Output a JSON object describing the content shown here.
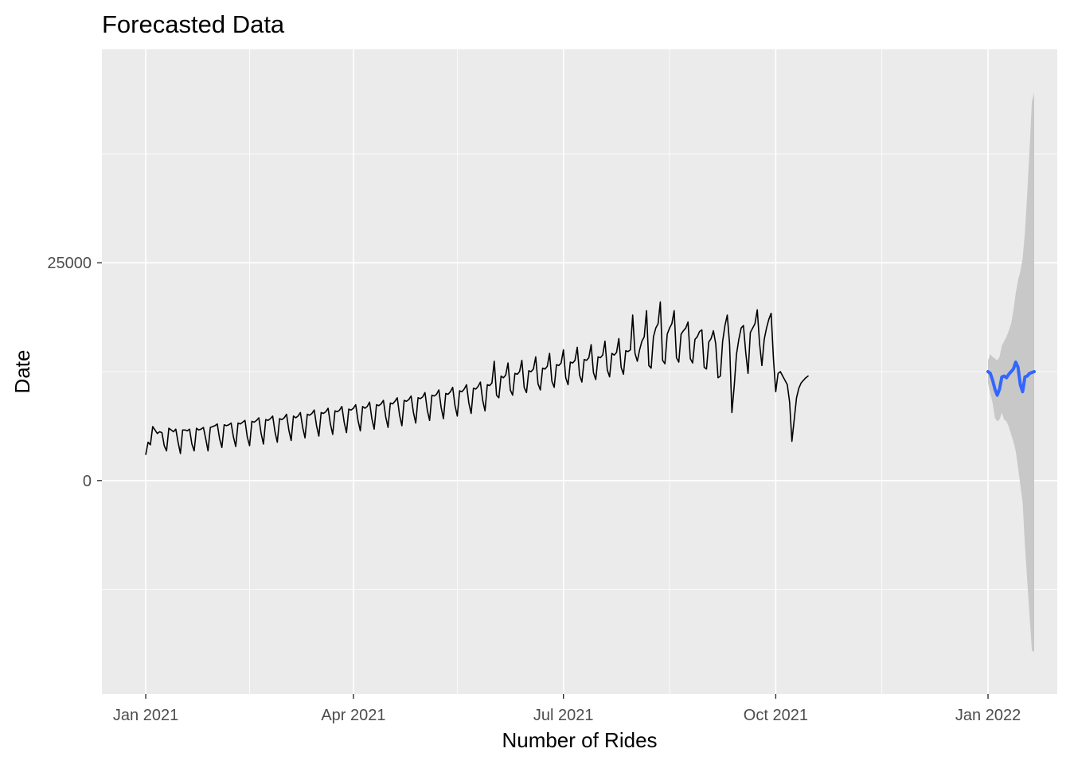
{
  "chart_data": {
    "type": "line",
    "title": "Forecasted Data",
    "xlabel": "Number of Rides",
    "ylabel": "Date",
    "x_range": [
      "2020-12-13",
      "2022-01-31"
    ],
    "y_range": [
      -24500,
      49500
    ],
    "x_ticks": [
      {
        "date": "2021-01-01",
        "label": "Jan 2021"
      },
      {
        "date": "2021-04-01",
        "label": "Apr 2021"
      },
      {
        "date": "2021-07-01",
        "label": "Jul 2021"
      },
      {
        "date": "2021-10-01",
        "label": "Oct 2021"
      },
      {
        "date": "2022-01-01",
        "label": "Jan 2022"
      }
    ],
    "x_minor_ticks": [
      "2021-02-15",
      "2021-05-16",
      "2021-08-16",
      "2021-11-16"
    ],
    "y_ticks": [
      {
        "value": 0,
        "label": "0"
      },
      {
        "value": 25000,
        "label": "25000"
      }
    ],
    "y_minor_ticks": [
      -12500,
      12500,
      37500
    ],
    "grid": true,
    "legend": "none",
    "colors": {
      "panel": "#ebebeb",
      "grid": "#ffffff",
      "observed": "#000000",
      "forecast": "#3366ff",
      "interval": "#c8c8c8"
    },
    "series": [
      {
        "name": "observed",
        "start_date": "2021-01-01",
        "frequency": "daily",
        "values": [
          3000,
          4400,
          4100,
          6200,
          5800,
          5400,
          5600,
          5500,
          4000,
          3400,
          6000,
          5800,
          5600,
          5900,
          4400,
          3100,
          5800,
          5800,
          5700,
          5900,
          4200,
          3400,
          6000,
          5800,
          5900,
          6100,
          4800,
          3400,
          6100,
          6200,
          6300,
          6500,
          4800,
          3800,
          6400,
          6300,
          6400,
          6600,
          5000,
          3900,
          6600,
          6500,
          6700,
          6900,
          5000,
          4000,
          6800,
          6700,
          6900,
          7200,
          5400,
          4200,
          7000,
          6900,
          7100,
          7400,
          5600,
          4400,
          7100,
          7000,
          7200,
          7600,
          5800,
          4600,
          7400,
          7200,
          7400,
          7800,
          6100,
          4900,
          7600,
          7500,
          7700,
          8100,
          6300,
          5100,
          7800,
          7700,
          7900,
          8300,
          6500,
          5300,
          8000,
          7900,
          8100,
          8500,
          6700,
          5500,
          8200,
          8100,
          8300,
          8700,
          6900,
          5700,
          8500,
          8300,
          8500,
          9000,
          7100,
          5900,
          8700,
          8600,
          8800,
          9200,
          7300,
          6100,
          8900,
          8800,
          9100,
          9500,
          7500,
          6300,
          9200,
          9100,
          9300,
          9700,
          7800,
          6600,
          9500,
          9400,
          9600,
          10100,
          8100,
          6900,
          9800,
          9700,
          9900,
          10400,
          8400,
          7100,
          10000,
          9900,
          10200,
          10700,
          8600,
          7400,
          10300,
          10200,
          10500,
          11000,
          8900,
          7700,
          10600,
          10500,
          10800,
          11300,
          9200,
          8000,
          11000,
          10900,
          11200,
          13700,
          9800,
          9500,
          12000,
          11800,
          12100,
          13500,
          10400,
          9800,
          12300,
          12200,
          12500,
          13800,
          10700,
          10100,
          12600,
          12500,
          12800,
          14200,
          11100,
          10400,
          12900,
          12800,
          13100,
          14600,
          11400,
          10700,
          13300,
          13200,
          13500,
          15000,
          11800,
          11000,
          13600,
          13500,
          13800,
          15300,
          12100,
          11300,
          13900,
          13800,
          14100,
          15600,
          12400,
          11600,
          14200,
          14100,
          14400,
          16000,
          12700,
          11900,
          14600,
          14400,
          14700,
          16300,
          13000,
          12200,
          14900,
          14800,
          15000,
          19000,
          14600,
          13700,
          15000,
          16000,
          16500,
          19500,
          13200,
          12900,
          16500,
          17500,
          18000,
          20500,
          13800,
          13400,
          16800,
          17500,
          18000,
          19500,
          14100,
          13600,
          16800,
          17200,
          17500,
          18200,
          14000,
          13500,
          16200,
          16500,
          17100,
          17300,
          13000,
          12800,
          15900,
          16300,
          17200,
          15700,
          11800,
          12000,
          16000,
          17800,
          19000,
          15700,
          7800,
          10800,
          14500,
          16200,
          17500,
          17800,
          14700,
          12300,
          17000,
          17500,
          18000,
          19600,
          15700,
          13200,
          16200,
          17500,
          18500,
          19200,
          14000,
          10200,
          12300,
          12500,
          12000,
          11500,
          11000,
          9000,
          4500,
          7000,
          9500,
          10600,
          11200,
          11500,
          11800,
          12000
        ]
      },
      {
        "name": "forecast",
        "start_date": "2022-01-01",
        "frequency": "daily",
        "values": [
          12500,
          12300,
          11500,
          10500,
          9800,
          10500,
          11900,
          12000,
          11800,
          12200,
          12500,
          12800,
          13600,
          13000,
          11000,
          10200,
          11900,
          12000,
          12300,
          12400,
          12500
        ]
      },
      {
        "name": "interval_upper",
        "start_date": "2022-01-01",
        "values": [
          13800,
          14500,
          14200,
          14000,
          13800,
          14200,
          15500,
          16000,
          16500,
          17200,
          18000,
          19500,
          21500,
          23000,
          24000,
          25500,
          28500,
          33000,
          38000,
          43500,
          44500
        ]
      },
      {
        "name": "interval_lower",
        "start_date": "2022-01-01",
        "values": [
          11200,
          10000,
          8900,
          7200,
          6800,
          7000,
          7800,
          7000,
          6800,
          6200,
          5300,
          4500,
          3400,
          1500,
          -500,
          -2500,
          -7500,
          -11500,
          -15500,
          -19500,
          -19700
        ]
      }
    ]
  }
}
